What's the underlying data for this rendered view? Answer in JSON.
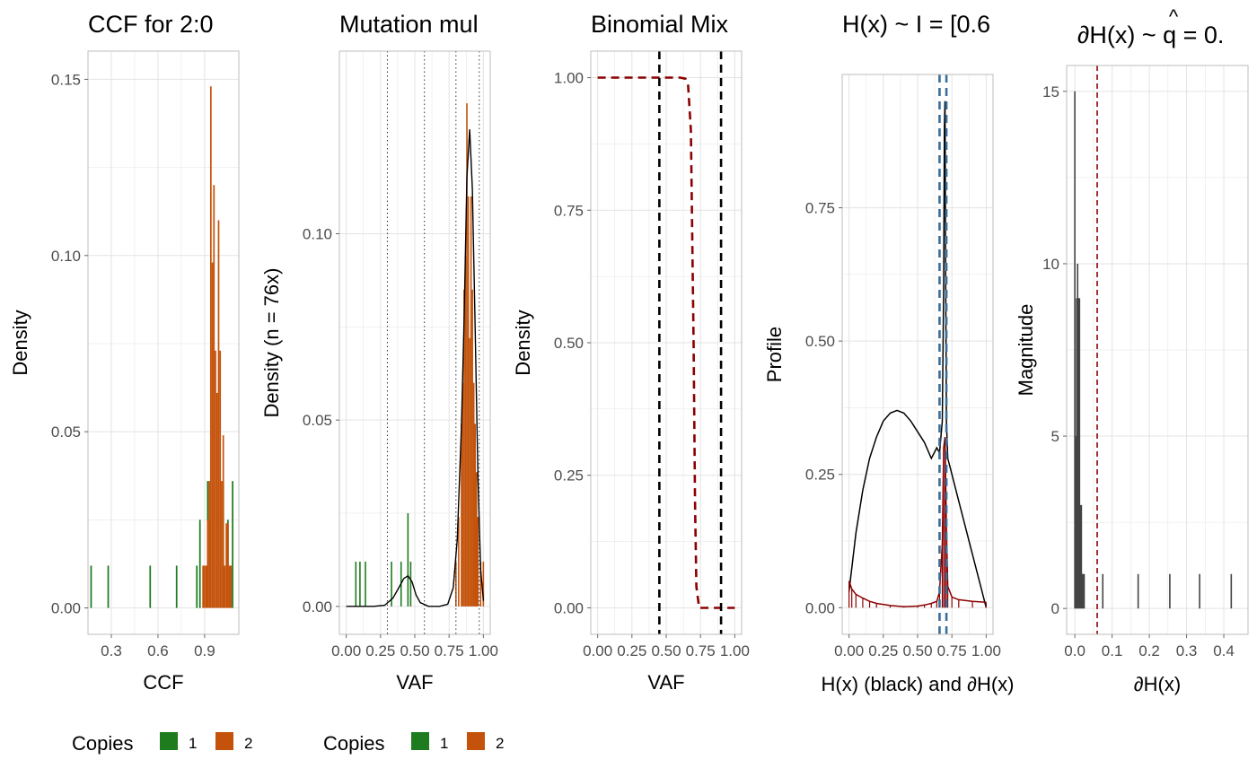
{
  "colors": {
    "copies_1": "#1E7B1E",
    "copies_2": "#C4520A",
    "dark_red": "#8B0000",
    "steel_blue": "#3A6E99",
    "bar_grey": "#444444",
    "grid": "#E3E3E3",
    "border": "#BDBDBD"
  },
  "chart_data": [
    {
      "type": "bar",
      "title": "CCF for 2:0",
      "xlabel": "CCF",
      "ylabel": "Density",
      "xlim": [
        0.15,
        1.12
      ],
      "ylim": [
        -0.0075,
        0.158
      ],
      "xticks": [
        0.3,
        0.6,
        0.9
      ],
      "xtick_labels": [
        "0.3",
        "0.6",
        "0.9"
      ],
      "yticks": [
        0,
        0.05,
        0.1,
        0.15
      ],
      "ytick_labels": [
        "0.00",
        "0.05",
        "0.10",
        "0.15"
      ],
      "legend": {
        "title": "Copies",
        "position": "bottom",
        "entries": [
          {
            "label": "1",
            "color": "#1E7B1E"
          },
          {
            "label": "2",
            "color": "#C4520A"
          }
        ]
      },
      "series": [
        {
          "name": "1",
          "color": "#1E7B1E",
          "bar_width": 0.01,
          "x": [
            0.17,
            0.28,
            0.55,
            0.72,
            0.85,
            0.87,
            0.92,
            1.02,
            1.05,
            1.08
          ],
          "values": [
            0.012,
            0.012,
            0.012,
            0.012,
            0.012,
            0.025,
            0.036,
            0.036,
            0.025,
            0.036
          ]
        },
        {
          "name": "2",
          "color": "#C4520A",
          "bar_width": 0.01,
          "x": [
            0.89,
            0.9,
            0.91,
            0.92,
            0.93,
            0.94,
            0.95,
            0.96,
            0.97,
            0.98,
            0.99,
            1.0,
            1.01,
            1.02,
            1.03,
            1.04,
            1.05,
            1.06,
            1.07
          ],
          "values": [
            0.012,
            0.012,
            0.012,
            0.025,
            0.036,
            0.148,
            0.098,
            0.12,
            0.073,
            0.061,
            0.11,
            0.073,
            0.036,
            0.049,
            0.012,
            0.024,
            0.024,
            0.012,
            0.012
          ]
        }
      ]
    },
    {
      "type": "bar",
      "title": "Mutation mul",
      "xlabel": "VAF",
      "ylabel": "Density (n = 76x)",
      "xlim": [
        -0.05,
        1.05
      ],
      "ylim": [
        -0.0075,
        0.149
      ],
      "xticks": [
        0,
        0.25,
        0.5,
        0.75,
        1.0
      ],
      "xtick_labels": [
        "0.00",
        "0.25",
        "0.50",
        "0.75",
        "1.00"
      ],
      "yticks": [
        0,
        0.05,
        0.1
      ],
      "ytick_labels": [
        "0.00",
        "0.05",
        "0.10"
      ],
      "vlines_dotted": [
        0.3,
        0.57,
        0.8,
        0.97
      ],
      "legend": {
        "title": "Copies",
        "position": "bottom",
        "entries": [
          {
            "label": "1",
            "color": "#1E7B1E"
          },
          {
            "label": "2",
            "color": "#C4520A"
          }
        ]
      },
      "series": [
        {
          "name": "1",
          "color": "#1E7B1E",
          "bar_width": 0.01,
          "x": [
            0.07,
            0.1,
            0.14,
            0.33,
            0.4,
            0.45,
            0.47
          ],
          "values": [
            0.012,
            0.012,
            0.012,
            0.012,
            0.012,
            0.025,
            0.012
          ]
        },
        {
          "name": "2",
          "color": "#C4520A",
          "bar_width": 0.01,
          "x": [
            0.8,
            0.82,
            0.84,
            0.85,
            0.86,
            0.87,
            0.88,
            0.89,
            0.9,
            0.91,
            0.92,
            0.93,
            0.94,
            0.95,
            0.96,
            0.98,
            1.0
          ],
          "values": [
            0.012,
            0.024,
            0.049,
            0.06,
            0.085,
            0.094,
            0.135,
            0.11,
            0.072,
            0.11,
            0.085,
            0.06,
            0.049,
            0.036,
            0.024,
            0.012,
            0.012
          ]
        }
      ],
      "density_curve": {
        "x": [
          0,
          0.1,
          0.2,
          0.28,
          0.34,
          0.38,
          0.42,
          0.45,
          0.48,
          0.51,
          0.54,
          0.6,
          0.68,
          0.74,
          0.78,
          0.81,
          0.84,
          0.86,
          0.88,
          0.9,
          0.92,
          0.94,
          0.96,
          0.98,
          1.0
        ],
        "y": [
          0,
          0,
          0,
          0.0003,
          0.0022,
          0.0048,
          0.0075,
          0.0082,
          0.0066,
          0.003,
          0.001,
          0,
          0,
          0.0006,
          0.005,
          0.018,
          0.048,
          0.078,
          0.115,
          0.128,
          0.112,
          0.075,
          0.035,
          0.01,
          0.0015
        ]
      }
    },
    {
      "type": "line",
      "title": "Binomial Mix",
      "xlabel": "VAF",
      "ylabel": "Density",
      "xlim": [
        -0.05,
        1.05
      ],
      "ylim": [
        -0.05,
        1.05
      ],
      "xticks": [
        0,
        0.25,
        0.5,
        0.75,
        1.0
      ],
      "xtick_labels": [
        "0.00",
        "0.25",
        "0.50",
        "0.75",
        "1.00"
      ],
      "yticks": [
        0,
        0.25,
        0.5,
        0.75,
        1.0
      ],
      "ytick_labels": [
        "0.00",
        "0.25",
        "0.50",
        "0.75",
        "1.00"
      ],
      "vlines_dashed": [
        0.45,
        0.9
      ],
      "series": [
        {
          "color": "#8B0000",
          "style": "dashed",
          "x": [
            0,
            0.2,
            0.4,
            0.6,
            0.64,
            0.66,
            0.68,
            0.7,
            0.71,
            0.72,
            0.74,
            0.8,
            1.0
          ],
          "y": [
            1,
            1,
            1,
            1,
            0.998,
            0.985,
            0.9,
            0.5,
            0.2,
            0.04,
            0,
            0,
            0
          ]
        }
      ]
    },
    {
      "type": "line",
      "title": "H(x) ~ I = [0.6",
      "xlabel": "H(x) (black) and ∂H(x)",
      "ylabel": "Profile",
      "xlim": [
        -0.05,
        1.05
      ],
      "ylim": [
        -0.05,
        1.0
      ],
      "xticks": [
        0,
        0.25,
        0.5,
        0.75,
        1.0
      ],
      "xtick_labels": [
        "0.00",
        "0.25",
        "0.50",
        "0.75",
        "1.00"
      ],
      "yticks": [
        0,
        0.25,
        0.5,
        0.75
      ],
      "ytick_labels": [
        "0.00",
        "0.25",
        "0.50",
        "0.75"
      ],
      "vlines_dashed": [
        0.66,
        0.71
      ],
      "series": [
        {
          "name": "H(x)",
          "color": "#000000",
          "x": [
            0,
            0.05,
            0.1,
            0.15,
            0.2,
            0.25,
            0.3,
            0.35,
            0.4,
            0.45,
            0.5,
            0.55,
            0.6,
            0.64,
            0.66,
            0.68,
            0.69,
            0.695,
            0.7,
            0.705,
            0.71,
            0.72,
            0.74,
            0.8,
            0.9,
            1.0
          ],
          "y": [
            0.03,
            0.14,
            0.22,
            0.28,
            0.32,
            0.35,
            0.365,
            0.37,
            0.365,
            0.35,
            0.33,
            0.31,
            0.28,
            0.3,
            0.29,
            0.35,
            0.6,
            0.9,
            0.95,
            0.6,
            0.35,
            0.28,
            0.26,
            0.2,
            0.1,
            0.0
          ]
        },
        {
          "name": "∂H(x)",
          "color": "#8B0000",
          "x": [
            0,
            0.02,
            0.05,
            0.1,
            0.15,
            0.2,
            0.3,
            0.4,
            0.5,
            0.55,
            0.6,
            0.64,
            0.66,
            0.68,
            0.69,
            0.7,
            0.71,
            0.72,
            0.75,
            0.8,
            0.9,
            1.0
          ],
          "y": [
            0.05,
            0.035,
            0.025,
            0.018,
            0.012,
            0.008,
            0.004,
            0.002,
            0.003,
            0.005,
            0.008,
            0.012,
            0.03,
            0.12,
            0.3,
            0.32,
            0.15,
            0.04,
            0.02,
            0.015,
            0.012,
            0.01
          ]
        }
      ]
    },
    {
      "type": "bar",
      "title": "∂H(x) ~  q = 0.",
      "title_hat": "^",
      "xlabel": "∂H(x)",
      "ylabel": "Magnitude",
      "xlim": [
        -0.022,
        0.465
      ],
      "ylim": [
        -0.75,
        15.75
      ],
      "xticks": [
        0,
        0.1,
        0.2,
        0.3,
        0.4
      ],
      "xtick_labels": [
        "0.0",
        "0.1",
        "0.2",
        "0.3",
        "0.4"
      ],
      "yticks": [
        0,
        5,
        10,
        15
      ],
      "ytick_labels": [
        "0",
        "5",
        "10",
        "15"
      ],
      "vline_dashed": 0.06,
      "series": [
        {
          "color": "#444444",
          "bar_width": 0.0025,
          "x": [
            0.0,
            0.0025,
            0.005,
            0.0075,
            0.01,
            0.0125,
            0.015,
            0.0175,
            0.02,
            0.0225,
            0.025,
            0.075,
            0.17,
            0.255,
            0.335,
            0.42
          ],
          "values": [
            15,
            5,
            9,
            10,
            9,
            9,
            3,
            3,
            1,
            1,
            1,
            1,
            1,
            1,
            1,
            1
          ]
        }
      ]
    }
  ]
}
